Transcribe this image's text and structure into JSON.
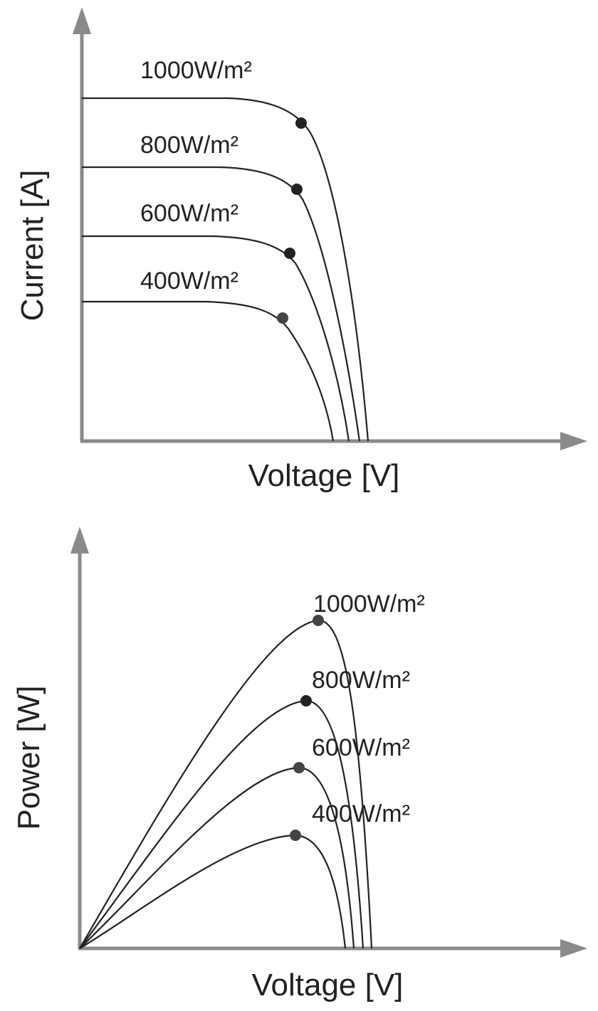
{
  "iv_chart": {
    "y_label": "Current [A]",
    "x_label": "Voltage [V]",
    "curves": [
      "1000W/m²",
      "800W/m²",
      "600W/m²",
      "400W/m²"
    ]
  },
  "pv_chart": {
    "y_label": "Power [W]",
    "x_label": "Voltage [V]",
    "curves": [
      "1000W/m²",
      "800W/m²",
      "600W/m²",
      "400W/m²"
    ]
  }
}
